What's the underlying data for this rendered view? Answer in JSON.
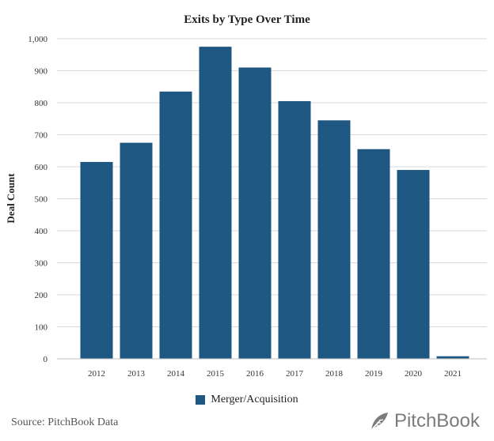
{
  "colors": {
    "bar": "#1f5783",
    "grid": "#d9d9d9",
    "axis": "#bfbfbf",
    "brand": "#7b7b7b"
  },
  "footer": {
    "source": "Source: PitchBook Data",
    "brand": "PitchBook",
    "brand_icon": "pitchbook-leaf-icon"
  },
  "chart_data": {
    "type": "bar",
    "title": "Exits by Type Over Time",
    "xlabel": "",
    "ylabel": "Deal Count",
    "ylim": [
      0,
      1000
    ],
    "yticks": [
      0,
      100,
      200,
      300,
      400,
      500,
      600,
      700,
      800,
      900,
      1000
    ],
    "ytick_labels": [
      "0",
      "100",
      "200",
      "300",
      "400",
      "500",
      "600",
      "700",
      "800",
      "900",
      "1,000"
    ],
    "categories": [
      "2012",
      "2013",
      "2014",
      "2015",
      "2016",
      "2017",
      "2018",
      "2019",
      "2020",
      "2021"
    ],
    "series": [
      {
        "name": "Merger/Acquisition",
        "values": [
          615,
          675,
          835,
          975,
          910,
          805,
          745,
          655,
          590,
          8
        ]
      }
    ],
    "grid": true,
    "legend": "bottom-center"
  }
}
